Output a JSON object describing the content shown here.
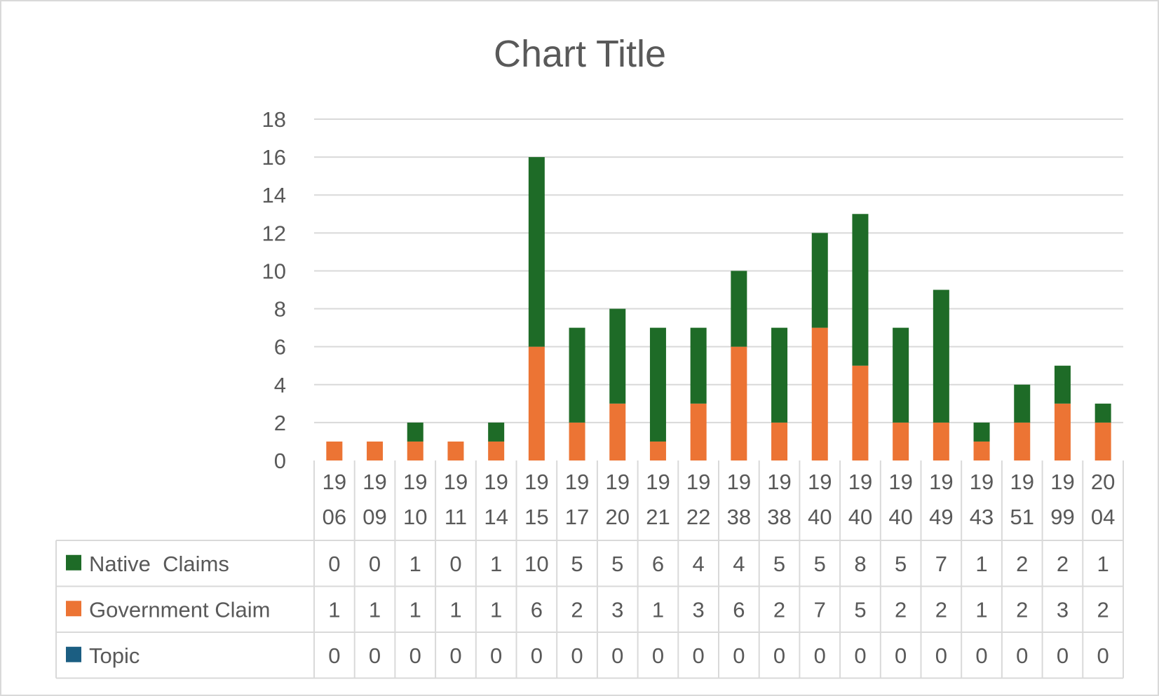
{
  "chart_data": {
    "type": "bar",
    "stacked": true,
    "title": "Chart Title",
    "xlabel": "",
    "ylabel": "",
    "ylim": [
      0,
      18
    ],
    "yticks": [
      "0",
      "2",
      "4",
      "6",
      "8",
      "10",
      "12",
      "14",
      "16",
      "18"
    ],
    "grid": true,
    "legend": "data-table",
    "categories": [
      [
        "19",
        "06"
      ],
      [
        "19",
        "09"
      ],
      [
        "19",
        "10"
      ],
      [
        "19",
        "11"
      ],
      [
        "19",
        "14"
      ],
      [
        "19",
        "15"
      ],
      [
        "19",
        "17"
      ],
      [
        "19",
        "20"
      ],
      [
        "19",
        "21"
      ],
      [
        "19",
        "22"
      ],
      [
        "19",
        "38"
      ],
      [
        "19",
        "38"
      ],
      [
        "19",
        "40"
      ],
      [
        "19",
        "40"
      ],
      [
        "19",
        "40"
      ],
      [
        "19",
        "49"
      ],
      [
        "19",
        "43"
      ],
      [
        "19",
        "51"
      ],
      [
        "19",
        "99"
      ],
      [
        "20",
        "04"
      ]
    ],
    "series": [
      {
        "name": "Native  Claims",
        "color": "#1e6b27",
        "values": [
          0,
          0,
          1,
          0,
          1,
          10,
          5,
          5,
          6,
          4,
          4,
          5,
          5,
          8,
          5,
          7,
          1,
          2,
          2,
          1
        ]
      },
      {
        "name": "Government Claim",
        "color": "#ec7434",
        "values": [
          1,
          1,
          1,
          1,
          1,
          6,
          2,
          3,
          1,
          3,
          6,
          2,
          7,
          5,
          2,
          2,
          1,
          2,
          3,
          2
        ]
      },
      {
        "name": "Topic",
        "color": "#1b5e82",
        "values": [
          0,
          0,
          0,
          0,
          0,
          0,
          0,
          0,
          0,
          0,
          0,
          0,
          0,
          0,
          0,
          0,
          0,
          0,
          0,
          0
        ]
      }
    ],
    "stack_order_bottom_to_top": [
      2,
      1,
      0
    ],
    "colors": {
      "grid": "#d9d9d9",
      "text": "#595959",
      "table_border": "#d9d9d9"
    }
  }
}
